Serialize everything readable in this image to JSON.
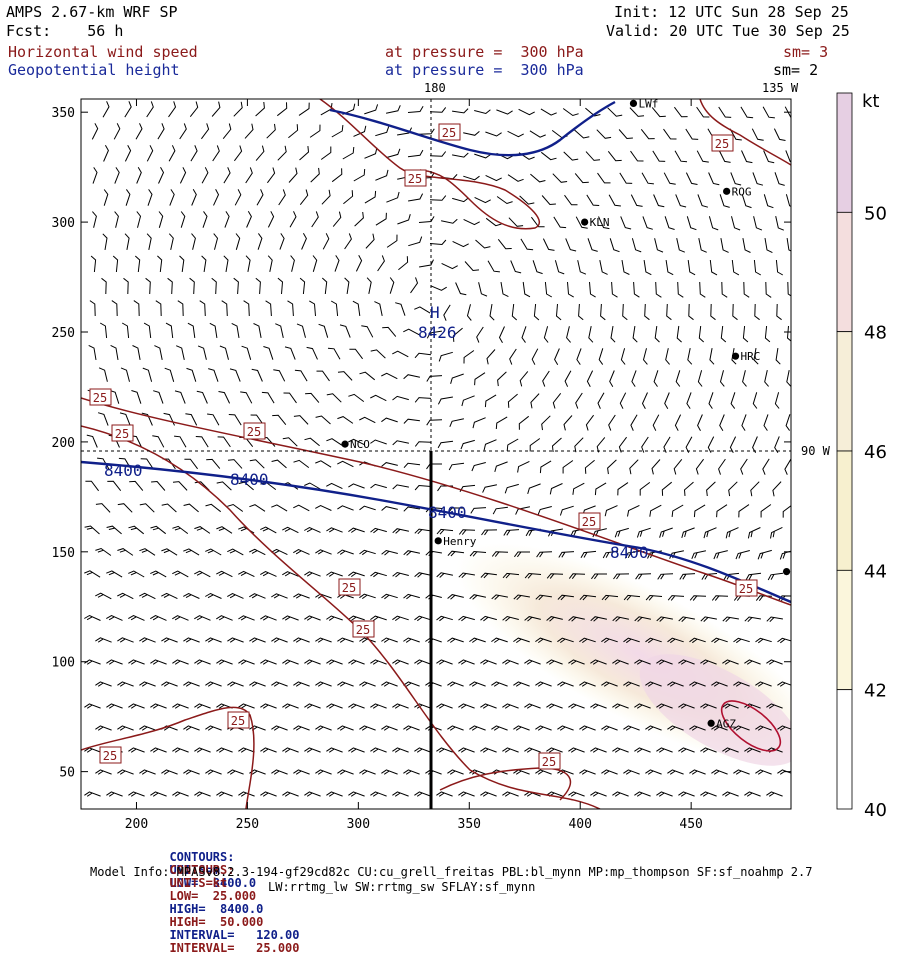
{
  "header": {
    "model_title": "AMPS 2.67-km WRF SP",
    "init_text": "Init: 12 UTC Sun 28 Sep 25",
    "forecast_text": "Fcst:    56 h",
    "valid_text": "Valid: 20 UTC Tue 30 Sep 25",
    "field1_name": "Horizontal wind speed",
    "field1_level": "at pressure =  300 hPa",
    "field1_smooth": "sm= 3",
    "field2_name": "Geopotential height",
    "field2_level": "at pressure =  300 hPa",
    "field2_smooth": "sm= 2"
  },
  "map": {
    "x_ticks": [
      "200",
      "250",
      "300",
      "350",
      "400",
      "450"
    ],
    "y_ticks": [
      "350",
      "300",
      "250",
      "200",
      "150",
      "100",
      "50"
    ],
    "x_tick_values": [
      200,
      250,
      300,
      350,
      400,
      450
    ],
    "y_tick_values": [
      350,
      300,
      250,
      200,
      150,
      100,
      50
    ],
    "x_range": [
      175,
      495
    ],
    "y_range": [
      33,
      356
    ],
    "meridian_labels": {
      "top_180": "180",
      "top_135w": "135 W",
      "right_90w": "90 W"
    },
    "stations": [
      {
        "name": "LWf",
        "x": 424,
        "y": 354
      },
      {
        "name": "ROG",
        "x": 466,
        "y": 314
      },
      {
        "name": "KLN",
        "x": 402,
        "y": 300
      },
      {
        "name": "HRC",
        "x": 470,
        "y": 239
      },
      {
        "name": "NCO",
        "x": 294,
        "y": 199
      },
      {
        "name": "Henry",
        "x": 336,
        "y": 155
      },
      {
        "name": "AGZ",
        "x": 459,
        "y": 72
      },
      {
        "name": "",
        "x": 493,
        "y": 141
      }
    ],
    "high_center": {
      "symbol": "H",
      "value": "8426"
    },
    "height_contour_labels": [
      "8400",
      "8400",
      "8400",
      "8400"
    ],
    "speed_contour_labels": [
      "25",
      "25",
      "25",
      "25",
      "25",
      "25",
      "25",
      "25",
      "25",
      "25",
      "25",
      "25",
      "25"
    ],
    "colorbar": {
      "unit": "kt",
      "levels": [
        "50",
        "48",
        "46",
        "44",
        "42",
        "40"
      ],
      "colors": [
        "#e6cfe3",
        "#f4dede",
        "#f6eed8",
        "#f7f0cf",
        "#fbf6dc",
        "#ffffff"
      ]
    },
    "colors": {
      "height_contour": "#10208a",
      "speed_contour": "#8b1a1a",
      "barbs": "#000000"
    }
  },
  "footer": {
    "line1": {
      "label": "CONTOURS:",
      "units": "UNITS=m",
      "low": "LOW=  8400.0",
      "high": "HIGH=  8400.0",
      "interval": "INTERVAL=   120.00"
    },
    "line2": {
      "label": "CONTOURS:",
      "units": "UNITS=kt",
      "low": "LOW=  25.000",
      "high": "HIGH=  50.000",
      "interval": "INTERVAL=   25.000"
    },
    "model_info": "Model Info: MPASv8.2.3-194-gf29cd82c CU:cu_grell_freitas PBL:bl_mynn MP:mp_thompson SF:sf_noahmp 2.7",
    "physics_info": "LW:rrtmg_lw SW:rrtmg_sw SFLAY:sf_mynn"
  }
}
